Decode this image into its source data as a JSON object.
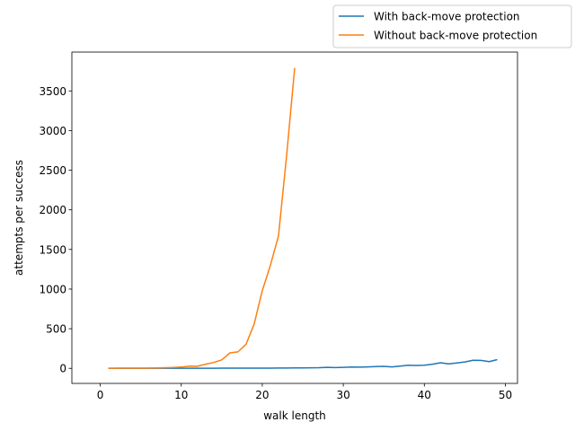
{
  "chart_data": {
    "type": "line",
    "xlabel": "walk length",
    "ylabel": "attempts per success",
    "xlim": [
      -3.5,
      51.5
    ],
    "ylim": [
      -190,
      3990
    ],
    "xticks": [
      0,
      10,
      20,
      30,
      40,
      50
    ],
    "yticks": [
      0,
      500,
      1000,
      1500,
      2000,
      2500,
      3000,
      3500
    ],
    "grid": false,
    "legend_position": "upper-right-outside",
    "series": [
      {
        "name": "With back-move protection",
        "color": "#1f77b4",
        "x": [
          1,
          2,
          3,
          4,
          5,
          6,
          7,
          8,
          9,
          10,
          11,
          12,
          13,
          14,
          15,
          16,
          17,
          18,
          19,
          20,
          21,
          22,
          23,
          24,
          25,
          26,
          27,
          28,
          29,
          30,
          31,
          32,
          33,
          34,
          35,
          36,
          37,
          38,
          39,
          40,
          41,
          42,
          43,
          44,
          45,
          46,
          47,
          48,
          49
        ],
        "y": [
          1,
          1,
          1,
          1,
          1,
          1,
          1,
          1,
          1,
          1,
          1,
          1,
          1,
          1,
          2,
          2,
          2,
          2,
          3,
          3,
          3,
          4,
          4,
          5,
          6,
          7,
          8,
          12,
          10,
          13,
          16,
          15,
          18,
          22,
          25,
          18,
          28,
          40,
          37,
          40,
          52,
          71,
          56,
          68,
          80,
          102,
          100,
          85,
          110
        ]
      },
      {
        "name": "Without back-move protection",
        "color": "#ff7f0e",
        "x": [
          1,
          2,
          3,
          4,
          5,
          6,
          7,
          8,
          9,
          10,
          11,
          12,
          13,
          14,
          15,
          16,
          17,
          18,
          19,
          20,
          21,
          22,
          23,
          24
        ],
        "y": [
          1,
          2,
          2,
          3,
          3,
          4,
          5,
          8,
          11,
          16,
          28,
          27,
          52,
          74,
          107,
          195,
          208,
          305,
          560,
          980,
          1300,
          1670,
          2680,
          3790
        ]
      }
    ]
  }
}
